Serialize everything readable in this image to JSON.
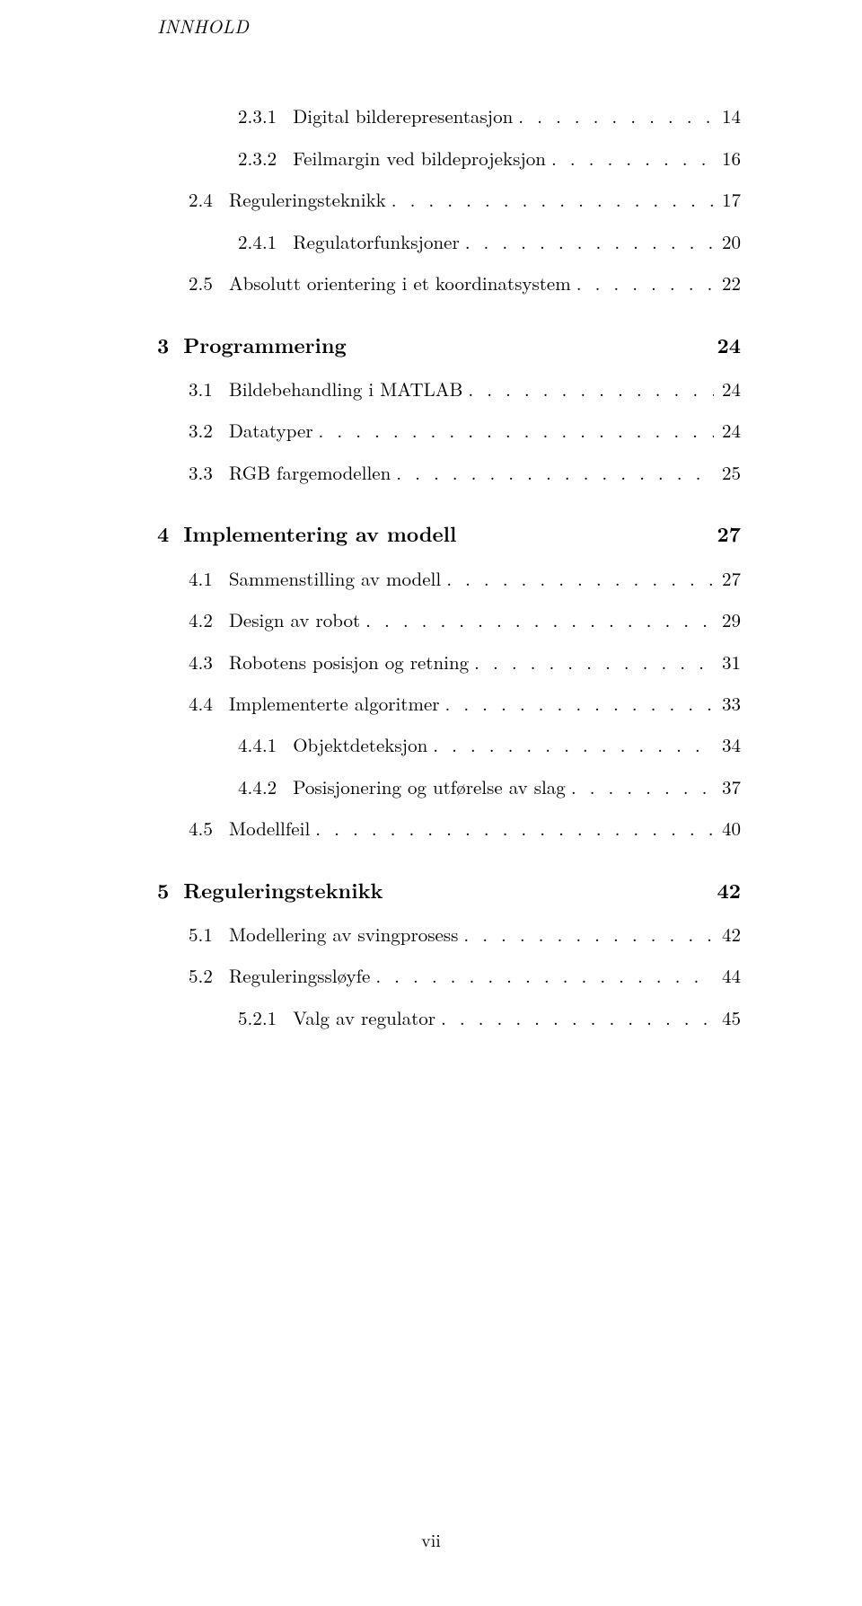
{
  "running_head": "INNHOLD",
  "dot": ". . . . . . . . . . . . . . . . . . . . . . . . . . . . . . . . . . . . . . . . . . . . . . . . . . . . . . . . . . . . . . . . . . . . . . . . . . . . . . . .",
  "entries": [
    {
      "n": "2.3.1",
      "t": "Digital bilderepresentasjon",
      "p": "14",
      "lvl": 2
    },
    {
      "n": "2.3.2",
      "t": "Feilmargin ved bildeprojeksjon",
      "p": "16",
      "lvl": 2
    },
    {
      "n": "2.4",
      "t": "Reguleringsteknikk",
      "p": "17",
      "lvl": 1
    },
    {
      "n": "2.4.1",
      "t": "Regulatorfunksjoner",
      "p": "20",
      "lvl": 2
    },
    {
      "n": "2.5",
      "t": "Absolutt orientering i et koordinatsystem",
      "p": "22",
      "lvl": 1
    }
  ],
  "ch3": {
    "n": "3",
    "t": "Programmering",
    "p": "24"
  },
  "ch3_items": [
    {
      "n": "3.1",
      "t": "Bildebehandling i MATLAB",
      "p": "24",
      "lvl": 1
    },
    {
      "n": "3.2",
      "t": "Datatyper",
      "p": "24",
      "lvl": 1
    },
    {
      "n": "3.3",
      "t": "RGB fargemodellen",
      "p": "25",
      "lvl": 1
    }
  ],
  "ch4": {
    "n": "4",
    "t": "Implementering av modell",
    "p": "27"
  },
  "ch4_items": [
    {
      "n": "4.1",
      "t": "Sammenstilling av modell",
      "p": "27",
      "lvl": 1
    },
    {
      "n": "4.2",
      "t": "Design av robot",
      "p": "29",
      "lvl": 1
    },
    {
      "n": "4.3",
      "t": "Robotens posisjon og retning",
      "p": "31",
      "lvl": 1
    },
    {
      "n": "4.4",
      "t": "Implementerte algoritmer",
      "p": "33",
      "lvl": 1
    },
    {
      "n": "4.4.1",
      "t": "Objektdeteksjon",
      "p": "34",
      "lvl": 2
    },
    {
      "n": "4.4.2",
      "t": "Posisjonering og utførelse av slag",
      "p": "37",
      "lvl": 2
    },
    {
      "n": "4.5",
      "t": "Modellfeil",
      "p": "40",
      "lvl": 1
    }
  ],
  "ch5": {
    "n": "5",
    "t": "Reguleringsteknikk",
    "p": "42"
  },
  "ch5_items": [
    {
      "n": "5.1",
      "t": "Modellering av svingprosess",
      "p": "42",
      "lvl": 1
    },
    {
      "n": "5.2",
      "t": "Reguleringssløyfe",
      "p": "44",
      "lvl": 1
    },
    {
      "n": "5.2.1",
      "t": "Valg av regulator",
      "p": "45",
      "lvl": 2
    }
  ],
  "footer": "vii"
}
